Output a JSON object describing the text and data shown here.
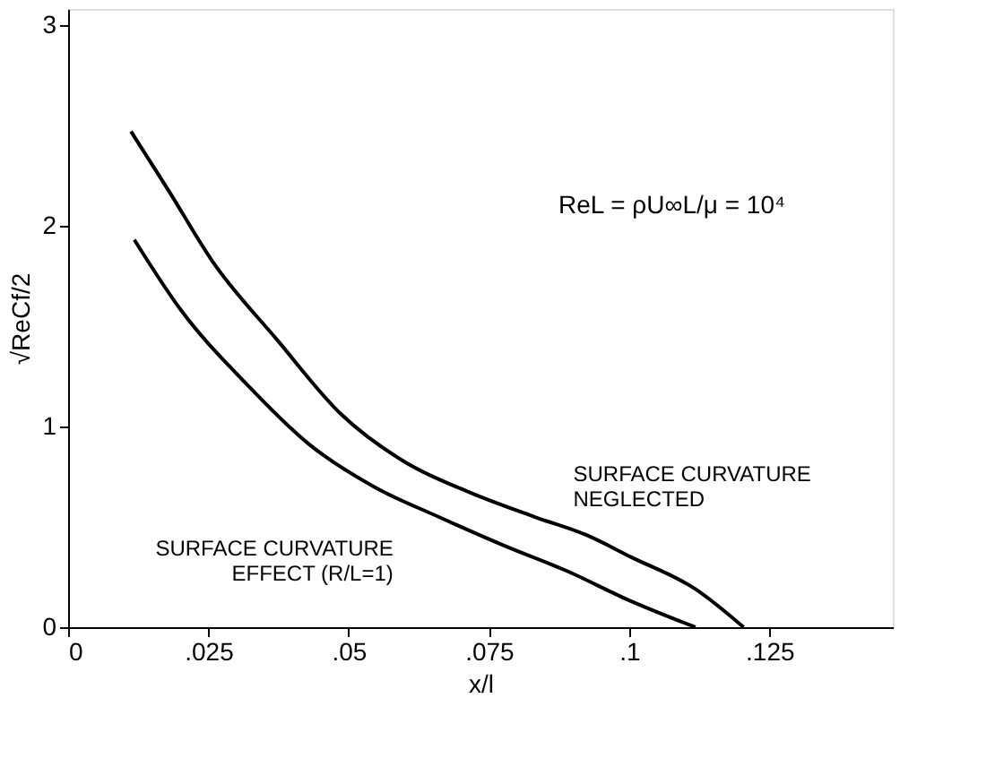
{
  "chart_data": {
    "type": "line",
    "xlabel": "x/l",
    "ylabel": "√ReCf/2",
    "xlim": [
      0,
      0.147
    ],
    "ylim": [
      0,
      3.08
    ],
    "xticks": [
      0,
      {
        "value": 0.025,
        "label": ".025"
      },
      {
        "value": 0.05,
        "label": ".05"
      },
      {
        "value": 0.075,
        "label": ".075"
      },
      {
        "value": 0.1,
        "label": ".1"
      },
      {
        "value": 0.125,
        "label": ".125"
      }
    ],
    "yticks": [
      0,
      1,
      2,
      3
    ],
    "grid": false,
    "marker": "none",
    "line_style": "solid",
    "series": [
      {
        "color": "#000000",
        "x": [
          0.0112,
          0.0178,
          0.0258,
          0.0373,
          0.0487,
          0.0602,
          0.0717,
          0.0831,
          0.0923,
          0.1003,
          0.1118,
          0.1204
        ],
        "values": [
          2.47,
          2.18,
          1.82,
          1.43,
          1.06,
          0.82,
          0.67,
          0.55,
          0.46,
          0.35,
          0.19,
          0
        ]
      },
      {
        "color": "#000000",
        "x": [
          0.0118,
          0.0201,
          0.0315,
          0.043,
          0.0545,
          0.066,
          0.0774,
          0.0889,
          0.1003,
          0.1118
        ],
        "values": [
          1.93,
          1.58,
          1.22,
          0.91,
          0.7,
          0.55,
          0.41,
          0.28,
          0.13,
          0
        ]
      }
    ],
    "annotations": [
      {
        "text": "SURFACE CURVATURE\nNEGLECTED",
        "x": 0.083,
        "y": 0.56
      },
      {
        "text": "SURFACE CURVATURE\nEFFECT (R/L=1)",
        "x": 0.065,
        "y": 0.6
      },
      "ReL = ρU∞L/μ = 10⁴"
    ]
  }
}
